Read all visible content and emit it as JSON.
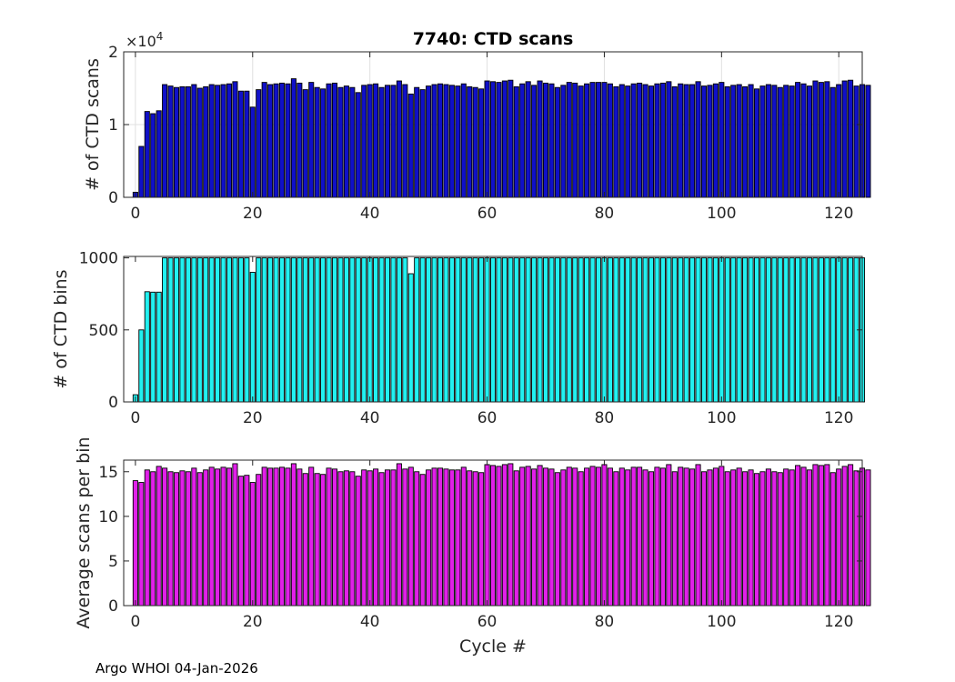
{
  "footer": "Argo WHOI 04-Jan-2026",
  "chart_data": [
    {
      "type": "bar",
      "title": "7740: CTD scans",
      "ylabel": "# of CTD scans",
      "xlabel": "",
      "exponent_label": "×10",
      "exponent_power": "4",
      "color": "#1010c8",
      "xlim": [
        -2,
        124
      ],
      "ylim": [
        0,
        2
      ],
      "xticks": [
        0,
        20,
        40,
        60,
        80,
        100,
        120
      ],
      "yticks": [
        0,
        1,
        2
      ],
      "ytick_labels": [
        "0",
        "1",
        "2"
      ],
      "grid": true,
      "values": [
        0.07,
        0.7,
        1.18,
        1.15,
        1.19,
        1.55,
        1.53,
        1.51,
        1.52,
        1.52,
        1.55,
        1.5,
        1.52,
        1.55,
        1.54,
        1.55,
        1.56,
        1.59,
        1.46,
        1.46,
        1.24,
        1.48,
        1.58,
        1.55,
        1.56,
        1.57,
        1.56,
        1.63,
        1.57,
        1.48,
        1.58,
        1.51,
        1.49,
        1.56,
        1.57,
        1.51,
        1.53,
        1.51,
        1.44,
        1.54,
        1.55,
        1.56,
        1.51,
        1.54,
        1.54,
        1.6,
        1.55,
        1.42,
        1.51,
        1.48,
        1.53,
        1.55,
        1.56,
        1.55,
        1.54,
        1.53,
        1.56,
        1.52,
        1.51,
        1.49,
        1.6,
        1.59,
        1.58,
        1.6,
        1.61,
        1.52,
        1.56,
        1.59,
        1.54,
        1.6,
        1.57,
        1.56,
        1.51,
        1.54,
        1.58,
        1.57,
        1.53,
        1.56,
        1.58,
        1.58,
        1.58,
        1.56,
        1.52,
        1.55,
        1.53,
        1.56,
        1.57,
        1.55,
        1.53,
        1.56,
        1.57,
        1.59,
        1.52,
        1.56,
        1.55,
        1.55,
        1.59,
        1.53,
        1.54,
        1.56,
        1.58,
        1.52,
        1.54,
        1.55,
        1.52,
        1.55,
        1.49,
        1.53,
        1.55,
        1.54,
        1.51,
        1.54,
        1.53,
        1.58,
        1.56,
        1.53,
        1.6,
        1.58,
        1.59,
        1.51,
        1.55,
        1.6,
        1.61,
        1.53,
        1.55,
        1.54
      ]
    },
    {
      "type": "bar",
      "title": "",
      "ylabel": "# of CTD bins",
      "xlabel": "",
      "color": "#22f0f0",
      "xlim": [
        -2,
        124
      ],
      "ylim": [
        0,
        1010
      ],
      "xticks": [
        0,
        20,
        40,
        60,
        80,
        100,
        120
      ],
      "yticks": [
        0,
        500,
        1000
      ],
      "ytick_labels": [
        "0",
        "500",
        "1000"
      ],
      "grid": false,
      "values": [
        50,
        500,
        765,
        762,
        762,
        1000,
        1000,
        1000,
        1000,
        1000,
        1000,
        1000,
        1000,
        1000,
        1000,
        1000,
        1000,
        1000,
        1000,
        1000,
        900,
        1000,
        1000,
        1000,
        1000,
        1000,
        1000,
        1000,
        1000,
        1000,
        1000,
        1000,
        1000,
        1000,
        1000,
        1000,
        1000,
        1000,
        1000,
        1000,
        1000,
        1000,
        1000,
        1000,
        1000,
        1000,
        1000,
        890,
        1000,
        1000,
        1000,
        1000,
        1000,
        1000,
        1000,
        1000,
        1000,
        1000,
        1000,
        1000,
        1000,
        1000,
        1000,
        1000,
        1000,
        1000,
        1000,
        1000,
        1000,
        1000,
        1000,
        1000,
        1000,
        1000,
        1000,
        1000,
        1000,
        1000,
        1000,
        1000,
        1000,
        1000,
        1000,
        1000,
        1000,
        1000,
        1000,
        1000,
        1000,
        1000,
        1000,
        1000,
        1000,
        1000,
        1000,
        1000,
        1000,
        1000,
        1000,
        1000,
        1000,
        1000,
        1000,
        1000,
        1000,
        1000,
        1000,
        1000,
        1000,
        1000,
        1000,
        1000,
        1000,
        1000,
        1000,
        1000,
        1000,
        1000,
        1000,
        1000,
        1000,
        1000,
        1000,
        1000,
        1000
      ]
    },
    {
      "type": "bar",
      "title": "",
      "ylabel": "Average scans per bin",
      "xlabel": "Cycle #",
      "color": "#e020e8",
      "xlim": [
        -2,
        124
      ],
      "ylim": [
        0,
        16.3
      ],
      "xticks": [
        0,
        20,
        40,
        60,
        80,
        100,
        120
      ],
      "yticks": [
        0,
        5,
        10,
        15
      ],
      "ytick_labels": [
        "0",
        "5",
        "10",
        "15"
      ],
      "grid": false,
      "values": [
        14.0,
        13.8,
        15.2,
        15.0,
        15.6,
        15.4,
        15.0,
        14.9,
        15.1,
        15.0,
        15.4,
        14.9,
        15.2,
        15.5,
        15.3,
        15.5,
        15.4,
        15.9,
        14.5,
        14.6,
        13.8,
        14.7,
        15.5,
        15.4,
        15.4,
        15.5,
        15.4,
        15.9,
        15.3,
        14.8,
        15.5,
        14.8,
        14.7,
        15.4,
        15.3,
        15.0,
        15.1,
        15.0,
        14.5,
        15.2,
        15.1,
        15.3,
        14.9,
        15.2,
        15.2,
        15.9,
        15.3,
        15.5,
        15.0,
        14.7,
        15.2,
        15.4,
        15.4,
        15.3,
        15.2,
        15.2,
        15.5,
        15.1,
        15.0,
        14.9,
        15.8,
        15.7,
        15.6,
        15.8,
        15.9,
        15.1,
        15.5,
        15.6,
        15.3,
        15.7,
        15.4,
        15.3,
        14.9,
        15.2,
        15.5,
        15.4,
        15.0,
        15.4,
        15.6,
        15.5,
        15.8,
        15.4,
        15.0,
        15.4,
        15.2,
        15.5,
        15.5,
        15.2,
        15.0,
        15.5,
        15.4,
        15.8,
        15.0,
        15.5,
        15.4,
        15.3,
        15.8,
        15.0,
        15.2,
        15.4,
        15.6,
        15.0,
        15.2,
        15.4,
        15.0,
        15.2,
        14.8,
        15.0,
        15.3,
        15.0,
        14.9,
        15.3,
        15.2,
        15.7,
        15.5,
        15.2,
        15.8,
        15.7,
        15.8,
        14.9,
        15.3,
        15.6,
        15.8,
        15.1,
        15.4,
        15.2
      ]
    }
  ]
}
